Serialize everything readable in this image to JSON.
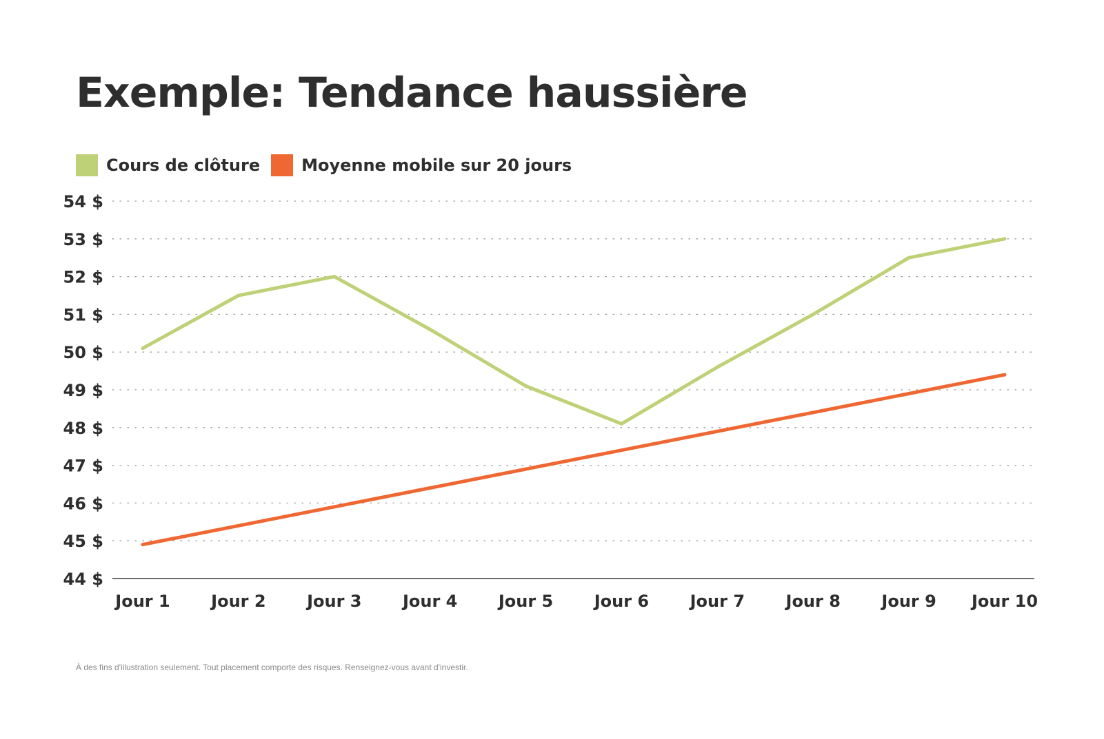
{
  "title": "Exemple: Tendance haussière",
  "legend": {
    "items": [
      {
        "label": "Cours de clôture",
        "color": "#bfd177"
      },
      {
        "label": "Moyenne mobile sur 20 jours",
        "color": "#ef6732"
      }
    ]
  },
  "chart_data": {
    "type": "line",
    "title": "Exemple: Tendance haussière",
    "xlabel": "",
    "ylabel": "",
    "categories": [
      "Jour 1",
      "Jour 2",
      "Jour 3",
      "Jour 4",
      "Jour 5",
      "Jour 6",
      "Jour 7",
      "Jour 8",
      "Jour 9",
      "Jour 10"
    ],
    "y_ticks": [
      "44 $",
      "45 $",
      "46 $",
      "47 $",
      "48 $",
      "49 $",
      "50 $",
      "51 $",
      "52 $",
      "53 $",
      "54 $"
    ],
    "ylim": [
      44,
      54
    ],
    "grid": "horizontal dotted",
    "legend_position": "top-left",
    "series": [
      {
        "name": "Cours de clôture",
        "color": "#bfd177",
        "values": [
          50.1,
          51.5,
          52.0,
          50.6,
          49.1,
          48.1,
          49.6,
          51.0,
          52.5,
          53.0
        ]
      },
      {
        "name": "Moyenne mobile sur 20 jours",
        "color": "#ef6732",
        "values": [
          44.9,
          45.4,
          45.9,
          46.4,
          46.9,
          47.4,
          47.9,
          48.4,
          48.9,
          49.4
        ]
      }
    ]
  },
  "footnote": "À des fins d'illustration seulement. Tout placement comporte des risques. Renseignez-vous avant d'investir."
}
